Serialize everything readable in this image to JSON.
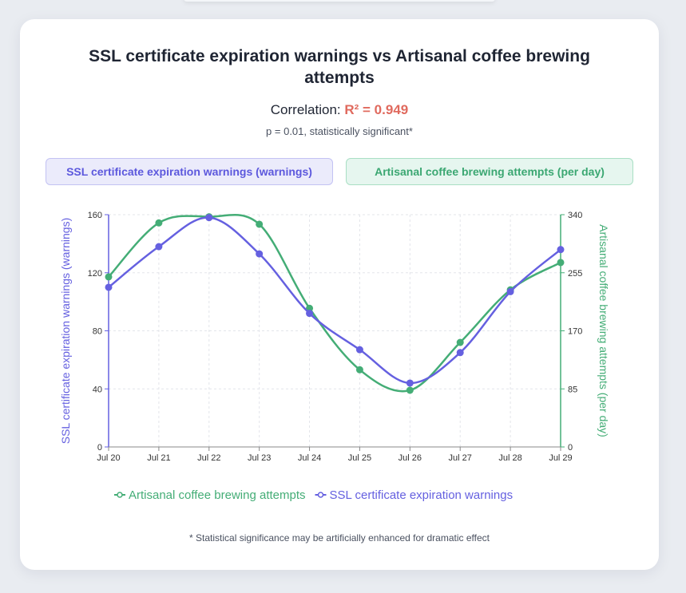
{
  "title_line1": "SSL certificate expiration warnings vs Artisanal coffee brewing",
  "title_line2": "attempts",
  "correlation_label": "Correlation:",
  "correlation_value": "R² = 0.949",
  "p_value_text": "p = 0.01, statistically significant*",
  "legend_boxes": {
    "ssl": "SSL certificate expiration warnings (warnings)",
    "coffee": "Artisanal coffee brewing attempts (per day)"
  },
  "footnote": "* Statistical significance may be artificially enhanced for dramatic effect",
  "colors": {
    "ssl": "#6560e0",
    "coffee": "#44ad76",
    "r2": "#e06a5e"
  },
  "chart_data": {
    "type": "line",
    "categories": [
      "Jul 20",
      "Jul 21",
      "Jul 22",
      "Jul 23",
      "Jul 24",
      "Jul 25",
      "Jul 26",
      "Jul 27",
      "Jul 28",
      "Jul 29"
    ],
    "series": [
      {
        "name": "SSL certificate expiration warnings",
        "axis": "left",
        "color": "#6560e0",
        "values": [
          110,
          138,
          158,
          133,
          92,
          67,
          44,
          65,
          107,
          136
        ]
      },
      {
        "name": "Artisanal coffee brewing attempts",
        "axis": "right",
        "color": "#44ad76",
        "values": [
          249,
          328,
          337,
          326,
          203,
          113,
          83,
          153,
          230,
          270
        ]
      }
    ],
    "ylabel_left": "SSL certificate expiration warnings (warnings)",
    "ylabel_right": "Artisanal coffee brewing attempts (per day)",
    "ylim_left": [
      0,
      160
    ],
    "ylim_right": [
      0,
      340
    ],
    "yticks_left": [
      "0",
      "40",
      "80",
      "120",
      "160"
    ],
    "yticks_right": [
      "0",
      "85",
      "170",
      "255",
      "340"
    ],
    "legend_order": [
      "Artisanal coffee brewing attempts",
      "SSL certificate expiration warnings"
    ],
    "legend_position": "bottom",
    "grid": true
  }
}
